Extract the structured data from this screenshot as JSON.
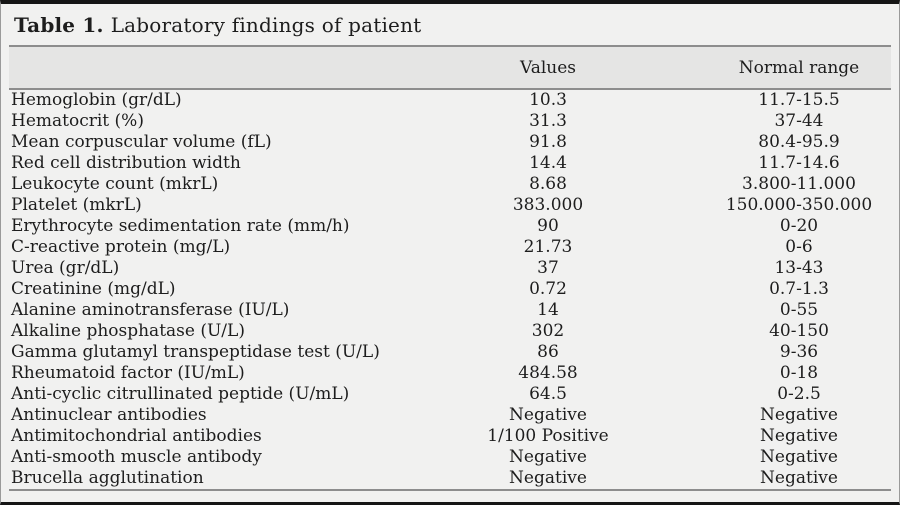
{
  "page": {
    "title_label": "Table 1.",
    "title_text": "Laboratory findings of patient"
  },
  "table": {
    "headers": {
      "parameter": "",
      "values": "Values",
      "normal_range": "Normal range"
    },
    "rows": [
      {
        "parameter": "Hemoglobin (gr/dL)",
        "value": "10.3",
        "range": "11.7-15.5"
      },
      {
        "parameter": "Hematocrit (%)",
        "value": "31.3",
        "range": "37-44"
      },
      {
        "parameter": "Mean corpuscular volume (fL)",
        "value": "91.8",
        "range": "80.4-95.9"
      },
      {
        "parameter": "Red cell distribution width",
        "value": "14.4",
        "range": "11.7-14.6"
      },
      {
        "parameter": "Leukocyte count (mkrL)",
        "value": "8.68",
        "range": "3.800-11.000"
      },
      {
        "parameter": "Platelet (mkrL)",
        "value": "383.000",
        "range": "150.000-350.000"
      },
      {
        "parameter": "Erythrocyte sedimentation rate (mm/h)",
        "value": "90",
        "range": "0-20"
      },
      {
        "parameter": "C-reactive protein (mg/L)",
        "value": "21.73",
        "range": "0-6"
      },
      {
        "parameter": "Urea (gr/dL)",
        "value": "37",
        "range": "13-43"
      },
      {
        "parameter": "Creatinine (mg/dL)",
        "value": "0.72",
        "range": "0.7-1.3"
      },
      {
        "parameter": "Alanine aminotransferase (IU/L)",
        "value": "14",
        "range": "0-55"
      },
      {
        "parameter": "Alkaline phosphatase (U/L)",
        "value": "302",
        "range": "40-150"
      },
      {
        "parameter": "Gamma glutamyl transpeptidase test (U/L)",
        "value": "86",
        "range": "9-36"
      },
      {
        "parameter": "Rheumatoid factor (IU/mL)",
        "value": "484.58",
        "range": "0-18"
      },
      {
        "parameter": "Anti-cyclic citrullinated peptide (U/mL)",
        "value": "64.5",
        "range": "0-2.5"
      },
      {
        "parameter": "Antinuclear antibodies",
        "value": "Negative",
        "range": "Negative"
      },
      {
        "parameter": "Antimitochondrial antibodies",
        "value": "1/100 Positive",
        "range": "Negative"
      },
      {
        "parameter": "Anti-smooth muscle antibody",
        "value": "Negative",
        "range": "Negative"
      },
      {
        "parameter": "Brucella agglutination",
        "value": "Negative",
        "range": "Negative"
      }
    ]
  },
  "colors": {
    "background": "#f1f1f0",
    "header_band": "#e5e5e4",
    "rule": "#8d8d8d",
    "frame_border": "#151515",
    "text": "#1d1d1d"
  }
}
